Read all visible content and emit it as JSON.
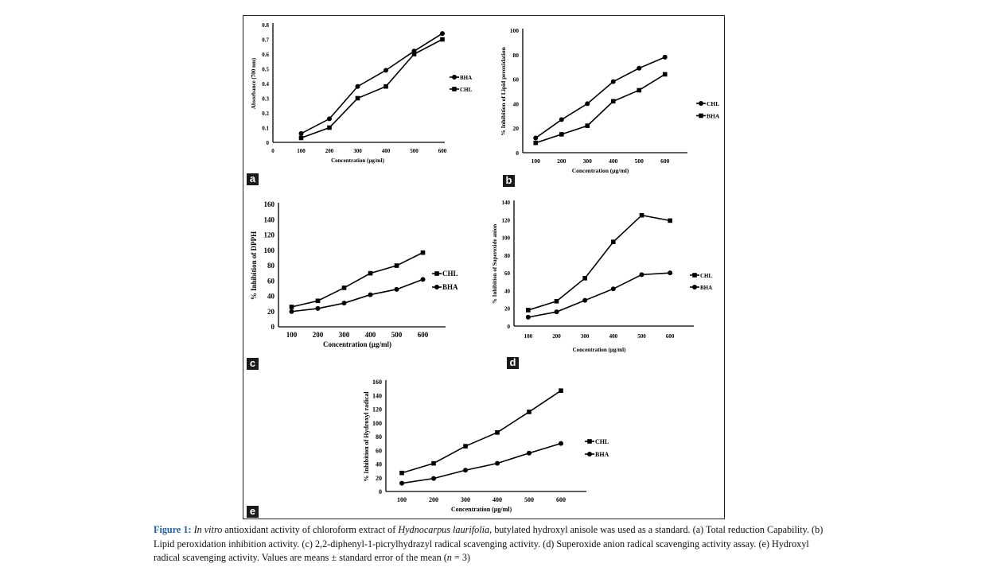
{
  "chart_data": [
    {
      "panel": "a",
      "type": "line",
      "title": "",
      "xlabel": "Concentration (µg/ml)",
      "ylabel": "Absorbance  (700 nm)",
      "x": [
        100,
        200,
        300,
        400,
        500,
        600
      ],
      "xticks": [
        0,
        100,
        200,
        300,
        400,
        500,
        600
      ],
      "ylim": [
        0,
        0.8
      ],
      "yticks": [
        "0",
        "0.1",
        "0.2",
        "0.3",
        "0.4",
        "0.5",
        "0.6",
        "0.7",
        "0.8"
      ],
      "legend": "right",
      "series": [
        {
          "name": "BHA",
          "marker": "circle",
          "values": [
            0.06,
            0.16,
            0.38,
            0.49,
            0.62,
            0.74
          ]
        },
        {
          "name": "CHL",
          "marker": "square",
          "values": [
            0.03,
            0.1,
            0.3,
            0.38,
            0.6,
            0.7
          ]
        }
      ]
    },
    {
      "panel": "b",
      "type": "line",
      "title": "",
      "xlabel": "Concentration (µg/ml)",
      "ylabel": "% Inhibition of  Lipid peroxidation",
      "x": [
        100,
        200,
        300,
        400,
        500,
        600
      ],
      "xticks": [
        100,
        200,
        300,
        400,
        500,
        600
      ],
      "ylim": [
        0,
        100
      ],
      "yticks": [
        "0",
        "20",
        "40",
        "60",
        "80",
        "100"
      ],
      "legend": "right",
      "series": [
        {
          "name": "CHL",
          "marker": "circle",
          "values": [
            12,
            27,
            40,
            58,
            69,
            78
          ]
        },
        {
          "name": "BHA",
          "marker": "square",
          "values": [
            8,
            15,
            22,
            42,
            51,
            64
          ]
        }
      ]
    },
    {
      "panel": "c",
      "type": "line",
      "title": "",
      "xlabel": "Concentration (µg/ml)",
      "ylabel": "% Inhibition of  DPPH",
      "x": [
        100,
        200,
        300,
        400,
        500,
        600
      ],
      "xticks": [
        100,
        200,
        300,
        400,
        500,
        600
      ],
      "ylim": [
        0,
        160
      ],
      "yticks": [
        "0",
        "20",
        "40",
        "60",
        "80",
        "100",
        "120",
        "140",
        "160"
      ],
      "legend": "right",
      "series": [
        {
          "name": "CHL",
          "marker": "square",
          "values": [
            26,
            34,
            51,
            70,
            80,
            97
          ]
        },
        {
          "name": "BHA",
          "marker": "circle",
          "values": [
            20,
            24,
            31,
            42,
            49,
            62
          ]
        }
      ]
    },
    {
      "panel": "d",
      "type": "line",
      "title": "",
      "xlabel": "Concentration (µg/ml)",
      "ylabel": "% Inhibition of  Superoxide anion",
      "x": [
        100,
        200,
        300,
        400,
        500,
        600
      ],
      "xticks": [
        100,
        200,
        300,
        400,
        500,
        600
      ],
      "ylim": [
        0,
        140
      ],
      "yticks": [
        "0",
        "20",
        "40",
        "60",
        "80",
        "100",
        "120",
        "140"
      ],
      "legend": "right",
      "series": [
        {
          "name": "CHL",
          "marker": "square",
          "values": [
            18,
            28,
            54,
            95,
            125,
            119
          ]
        },
        {
          "name": "BHA",
          "marker": "circle",
          "values": [
            10,
            16,
            29,
            42,
            58,
            60
          ]
        }
      ]
    },
    {
      "panel": "e",
      "type": "line",
      "title": "",
      "xlabel": "Concentration (µg/ml)",
      "ylabel": "% Inhibition of Hydroxyl radical",
      "x": [
        100,
        200,
        300,
        400,
        500,
        600
      ],
      "xticks": [
        100,
        200,
        300,
        400,
        500,
        600
      ],
      "ylim": [
        0,
        160
      ],
      "yticks": [
        "0",
        "20",
        "40",
        "60",
        "80",
        "100",
        "120",
        "140",
        "160"
      ],
      "legend": "right",
      "series": [
        {
          "name": "CHL",
          "marker": "square",
          "values": [
            27,
            41,
            66,
            86,
            116,
            147
          ]
        },
        {
          "name": "BHA",
          "marker": "circle",
          "values": [
            12,
            19,
            31,
            41,
            56,
            70
          ]
        }
      ]
    }
  ],
  "caption": {
    "figure": "Figure 1:",
    "italic1": "In vitro",
    "text1": " antioxidant activity of chloroform extract of ",
    "italic2": "Hydnocarpus laurifolia",
    "text2": ", butylated hydroxyl anisole was used as a standard. (a) Total reduction Capability. (b) Lipid peroxidation inhibition activity. (c) 2,2-diphenyl-1-picrylhydrazyl radical scavenging activity. (d) Superoxide anion radical scavenging activity assay. (e) Hydroxyl radical scavenging activity. Values are means ± standard error of the mean (",
    "italic3": "n",
    "text3": " = 3)"
  }
}
